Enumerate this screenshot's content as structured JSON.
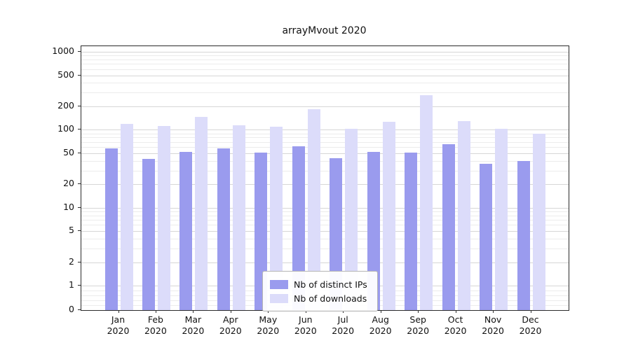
{
  "chart": {
    "title": "arrayMvout 2020"
  },
  "chart_data": {
    "type": "bar",
    "title": "arrayMvout 2020",
    "categories": [
      "Jan",
      "Feb",
      "Mar",
      "Apr",
      "May",
      "Jun",
      "Jul",
      "Aug",
      "Sep",
      "Oct",
      "Nov",
      "Dec"
    ],
    "category_year": "2020",
    "series": [
      {
        "name": "Nb of distinct IPs",
        "color": "#9a9bee",
        "values": [
          58,
          42,
          52,
          58,
          51,
          62,
          43,
          52,
          51,
          66,
          37,
          40
        ]
      },
      {
        "name": "Nb of downloads",
        "color": "#dcdcfa",
        "values": [
          120,
          113,
          145,
          115,
          110,
          185,
          103,
          128,
          280,
          130,
          104,
          90
        ]
      }
    ],
    "xlabel": "",
    "ylabel": "",
    "yscale": "symlog",
    "yticks": [
      0,
      1,
      2,
      5,
      10,
      20,
      50,
      100,
      200,
      500,
      1000
    ],
    "ylim": [
      0,
      1100
    ],
    "grid": true,
    "legend_position": "lower center"
  }
}
